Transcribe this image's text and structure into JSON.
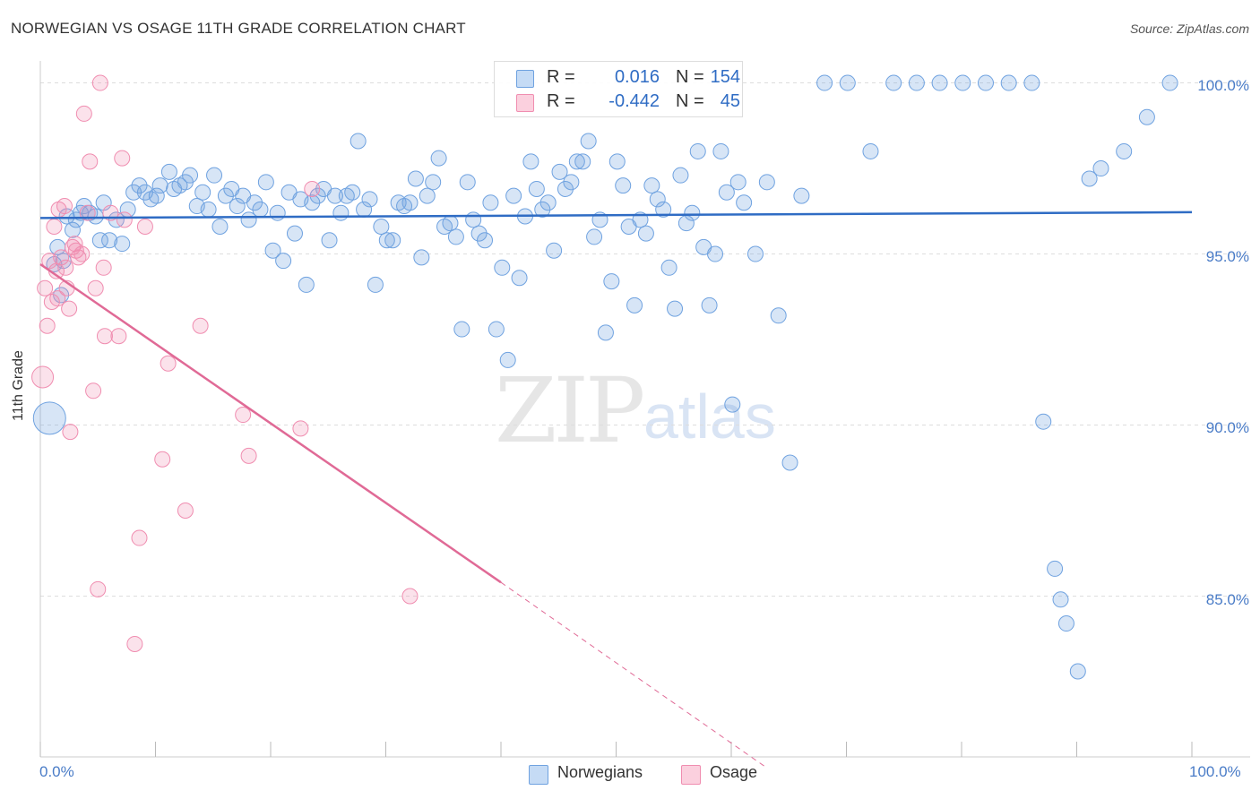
{
  "title": "NORWEGIAN VS OSAGE 11TH GRADE CORRELATION CHART",
  "source": "Source: ZipAtlas.com",
  "watermark": {
    "zip": "ZIP",
    "atlas": "atlas"
  },
  "colors": {
    "norwegians": "#6fa2e0",
    "osage": "#f08db0",
    "norwegian_line": "#2f6cc4",
    "osage_line": "#e06a96",
    "tick_text": "#4a7cc7"
  },
  "legend": {
    "norwegians": {
      "r_label": "R =",
      "r_value": "0.016",
      "n_label": "N =",
      "n_value": "154"
    },
    "osage": {
      "r_label": "R =",
      "r_value": "-0.442",
      "n_label": "N =",
      "n_value": "45"
    }
  },
  "chart_data": {
    "type": "scatter",
    "title": "NORWEGIAN VS OSAGE 11TH GRADE CORRELATION CHART",
    "xlabel": "",
    "ylabel": "11th Grade",
    "xlim": [
      0,
      100
    ],
    "ylim": [
      80.3,
      100.8
    ],
    "x_tick_labels": [
      "0.0%",
      "100.0%"
    ],
    "y_ticks": [
      85,
      90,
      95,
      100
    ],
    "y_tick_labels": [
      "85.0%",
      "90.0%",
      "95.0%",
      "100.0%"
    ],
    "grid": true,
    "legend_position": "top-center",
    "series": [
      {
        "name": "Norwegians",
        "trend": {
          "x": [
            0,
            100
          ],
          "y": [
            96.05,
            96.22
          ]
        },
        "points": [
          [
            0.8,
            90.2
          ],
          [
            1.2,
            94.7
          ],
          [
            1.5,
            95.2
          ],
          [
            1.8,
            93.8
          ],
          [
            2.0,
            94.8
          ],
          [
            2.3,
            96.1
          ],
          [
            2.8,
            95.7
          ],
          [
            3.1,
            96.0
          ],
          [
            3.5,
            96.2
          ],
          [
            3.8,
            96.4
          ],
          [
            4.3,
            96.2
          ],
          [
            4.8,
            96.1
          ],
          [
            5.2,
            95.4
          ],
          [
            5.5,
            96.5
          ],
          [
            6.0,
            95.4
          ],
          [
            6.6,
            96.0
          ],
          [
            7.1,
            95.3
          ],
          [
            7.6,
            96.3
          ],
          [
            8.1,
            96.8
          ],
          [
            8.6,
            97.0
          ],
          [
            9.1,
            96.8
          ],
          [
            9.6,
            96.6
          ],
          [
            10.1,
            96.7
          ],
          [
            10.4,
            97.0
          ],
          [
            11.2,
            97.4
          ],
          [
            11.6,
            96.9
          ],
          [
            12.1,
            97.0
          ],
          [
            12.6,
            97.1
          ],
          [
            13.0,
            97.3
          ],
          [
            13.6,
            96.4
          ],
          [
            14.1,
            96.8
          ],
          [
            14.6,
            96.3
          ],
          [
            15.1,
            97.3
          ],
          [
            15.6,
            95.8
          ],
          [
            16.1,
            96.7
          ],
          [
            16.6,
            96.9
          ],
          [
            17.1,
            96.4
          ],
          [
            17.6,
            96.7
          ],
          [
            18.1,
            96.0
          ],
          [
            18.6,
            96.5
          ],
          [
            19.1,
            96.3
          ],
          [
            19.6,
            97.1
          ],
          [
            20.2,
            95.1
          ],
          [
            20.6,
            96.2
          ],
          [
            21.1,
            94.8
          ],
          [
            21.6,
            96.8
          ],
          [
            22.1,
            95.6
          ],
          [
            22.6,
            96.6
          ],
          [
            23.1,
            94.1
          ],
          [
            23.6,
            96.5
          ],
          [
            24.1,
            96.7
          ],
          [
            24.6,
            96.9
          ],
          [
            25.1,
            95.4
          ],
          [
            25.6,
            96.7
          ],
          [
            26.1,
            96.2
          ],
          [
            26.6,
            96.7
          ],
          [
            27.1,
            96.8
          ],
          [
            27.6,
            98.3
          ],
          [
            28.1,
            96.3
          ],
          [
            28.6,
            96.6
          ],
          [
            29.1,
            94.1
          ],
          [
            29.6,
            95.8
          ],
          [
            30.1,
            95.4
          ],
          [
            30.6,
            95.4
          ],
          [
            31.1,
            96.5
          ],
          [
            31.6,
            96.4
          ],
          [
            32.1,
            96.5
          ],
          [
            32.6,
            97.2
          ],
          [
            33.1,
            94.9
          ],
          [
            33.6,
            96.7
          ],
          [
            34.1,
            97.1
          ],
          [
            34.6,
            97.8
          ],
          [
            35.1,
            95.8
          ],
          [
            35.6,
            95.9
          ],
          [
            36.1,
            95.5
          ],
          [
            36.6,
            92.8
          ],
          [
            37.1,
            97.1
          ],
          [
            37.6,
            96.0
          ],
          [
            38.1,
            95.6
          ],
          [
            38.6,
            95.4
          ],
          [
            39.1,
            96.5
          ],
          [
            39.6,
            92.8
          ],
          [
            40.1,
            94.6
          ],
          [
            40.6,
            91.9
          ],
          [
            41.1,
            96.7
          ],
          [
            41.6,
            94.3
          ],
          [
            42.1,
            96.1
          ],
          [
            42.6,
            97.7
          ],
          [
            43.1,
            96.9
          ],
          [
            43.6,
            96.3
          ],
          [
            44.1,
            96.5
          ],
          [
            44.6,
            95.1
          ],
          [
            45.1,
            97.4
          ],
          [
            45.6,
            96.9
          ],
          [
            46.1,
            97.1
          ],
          [
            46.6,
            97.7
          ],
          [
            47.1,
            97.7
          ],
          [
            47.6,
            98.3
          ],
          [
            48.1,
            95.5
          ],
          [
            48.6,
            96.0
          ],
          [
            49.1,
            92.7
          ],
          [
            49.6,
            94.2
          ],
          [
            50.1,
            97.7
          ],
          [
            50.6,
            97.0
          ],
          [
            51.1,
            95.8
          ],
          [
            51.6,
            93.5
          ],
          [
            52.1,
            96.0
          ],
          [
            52.6,
            95.6
          ],
          [
            53.1,
            97.0
          ],
          [
            53.6,
            96.6
          ],
          [
            54.1,
            96.3
          ],
          [
            54.6,
            94.6
          ],
          [
            55.1,
            93.4
          ],
          [
            55.6,
            97.3
          ],
          [
            56.1,
            95.9
          ],
          [
            56.6,
            96.2
          ],
          [
            57.1,
            98.0
          ],
          [
            57.6,
            95.2
          ],
          [
            58.1,
            93.5
          ],
          [
            58.6,
            95.0
          ],
          [
            59.1,
            98.0
          ],
          [
            59.6,
            96.8
          ],
          [
            60.1,
            90.6
          ],
          [
            60.6,
            97.1
          ],
          [
            61.1,
            96.5
          ],
          [
            62.1,
            95.0
          ],
          [
            63.1,
            97.1
          ],
          [
            64.1,
            93.2
          ],
          [
            65.1,
            88.9
          ],
          [
            66.1,
            96.7
          ],
          [
            68.1,
            100.0
          ],
          [
            70.1,
            100.0
          ],
          [
            72.1,
            98.0
          ],
          [
            74.1,
            100.0
          ],
          [
            76.1,
            100.0
          ],
          [
            78.1,
            100.0
          ],
          [
            80.1,
            100.0
          ],
          [
            82.1,
            100.0
          ],
          [
            84.1,
            100.0
          ],
          [
            86.1,
            100.0
          ],
          [
            87.1,
            90.1
          ],
          [
            88.1,
            85.8
          ],
          [
            88.6,
            84.9
          ],
          [
            89.1,
            84.2
          ],
          [
            90.1,
            82.8
          ],
          [
            91.1,
            97.2
          ],
          [
            92.1,
            97.5
          ],
          [
            94.1,
            98.0
          ],
          [
            96.1,
            99.0
          ],
          [
            98.1,
            100.0
          ]
        ]
      },
      {
        "name": "Osage",
        "trend": {
          "x": [
            0,
            40,
            63
          ],
          "y": [
            94.7,
            85.4,
            80.0
          ],
          "solid_until_x": 40
        },
        "points": [
          [
            0.2,
            91.4
          ],
          [
            0.4,
            94.0
          ],
          [
            0.6,
            92.9
          ],
          [
            0.8,
            94.8
          ],
          [
            1.0,
            93.6
          ],
          [
            1.2,
            95.8
          ],
          [
            1.4,
            94.5
          ],
          [
            1.6,
            96.3
          ],
          [
            1.8,
            94.9
          ],
          [
            2.1,
            96.4
          ],
          [
            2.3,
            94.0
          ],
          [
            2.5,
            93.4
          ],
          [
            2.6,
            89.8
          ],
          [
            2.8,
            95.2
          ],
          [
            3.1,
            95.1
          ],
          [
            3.3,
            94.9
          ],
          [
            3.6,
            95.0
          ],
          [
            3.8,
            99.1
          ],
          [
            4.1,
            96.2
          ],
          [
            4.3,
            97.7
          ],
          [
            4.6,
            91.0
          ],
          [
            4.8,
            94.0
          ],
          [
            5.0,
            85.2
          ],
          [
            5.2,
            100.0
          ],
          [
            5.5,
            94.6
          ],
          [
            5.6,
            92.6
          ],
          [
            6.1,
            96.2
          ],
          [
            6.8,
            92.6
          ],
          [
            7.1,
            97.8
          ],
          [
            7.3,
            96.0
          ],
          [
            8.2,
            83.6
          ],
          [
            8.6,
            86.7
          ],
          [
            9.1,
            95.8
          ],
          [
            10.6,
            89.0
          ],
          [
            11.1,
            91.8
          ],
          [
            12.6,
            87.5
          ],
          [
            13.9,
            92.9
          ],
          [
            17.6,
            90.3
          ],
          [
            18.1,
            89.1
          ],
          [
            22.6,
            89.9
          ],
          [
            23.6,
            96.9
          ],
          [
            32.1,
            85.0
          ],
          [
            2.2,
            94.6
          ],
          [
            1.5,
            93.7
          ],
          [
            3.0,
            95.3
          ]
        ]
      }
    ]
  },
  "bottom_legend": [
    "Norwegians",
    "Osage"
  ]
}
